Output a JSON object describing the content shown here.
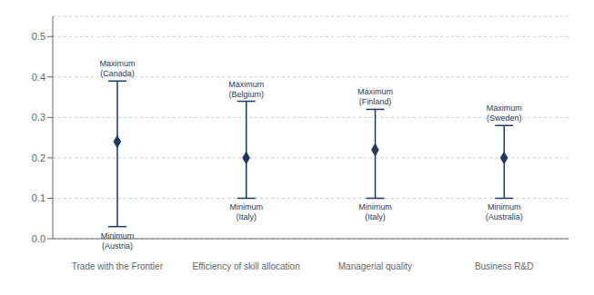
{
  "chart_data": {
    "type": "range",
    "categories": [
      "Trade with the Frontier",
      "Efficiency of skill allocation",
      "Managerial quality",
      "Business R&D"
    ],
    "values": [
      0.24,
      0.2,
      0.22,
      0.2
    ],
    "minimums": [
      0.03,
      0.1,
      0.1,
      0.1
    ],
    "maximums": [
      0.39,
      0.34,
      0.32,
      0.28
    ],
    "min_labels": [
      "Minimum\n(Austria)",
      "Minimum\n(Italy)",
      "Minimum\n(Italy)",
      "Minimum\n(Australia)"
    ],
    "max_labels": [
      "Maximum\n(Canada)",
      "Maximum\n(Belgium)",
      "Maximum\n(Finland)",
      "Maximum\n(Sweden)"
    ],
    "color": "#1f3864",
    "marker": "diamond",
    "ylim": [
      0.0,
      0.55
    ],
    "yticks": [
      {
        "value": 0.0,
        "label": "0.0"
      },
      0.1,
      0.2,
      0.3,
      0.4,
      0.5
    ],
    "grid": true
  }
}
